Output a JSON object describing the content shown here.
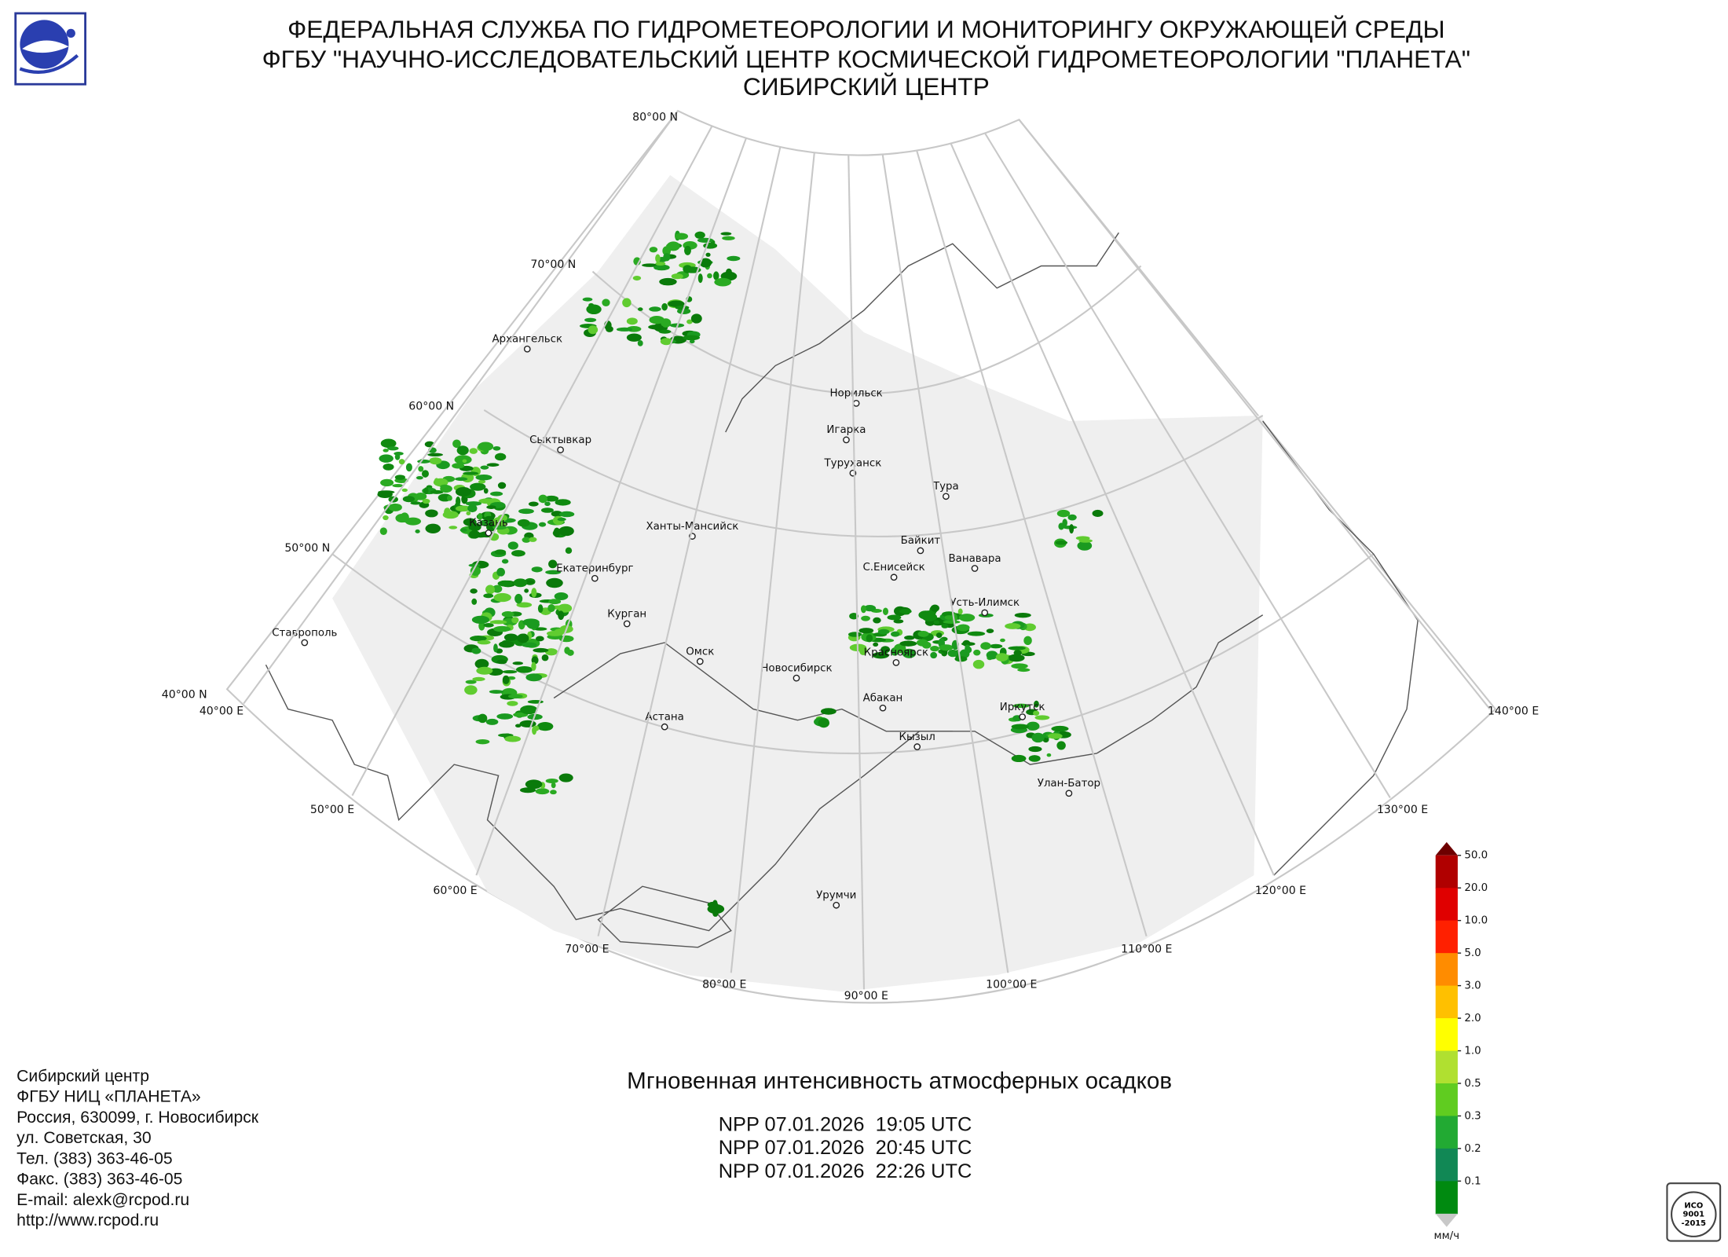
{
  "header": {
    "lines": [
      "ФЕДЕРАЛЬНАЯ СЛУЖБА ПО ГИДРОМЕТЕОРОЛОГИИ И МОНИТОРИНГУ ОКРУЖАЮЩЕЙ СРЕДЫ",
      "ФГБУ \"НАУЧНО-ИССЛЕДОВАТЕЛЬСКИЙ ЦЕНТР КОСМИЧЕСКОЙ ГИДРОМЕТЕОРОЛОГИИ \"ПЛАНЕТА\"",
      "СИБИРСКИЙ ЦЕНТР"
    ]
  },
  "map": {
    "graticule_labels": [
      "80°00 N",
      "70°00 N",
      "60°00 N",
      "50°00 N",
      "40°00 N",
      "40°00 E",
      "50°00 E",
      "60°00 E",
      "70°00 E",
      "80°00 E",
      "90°00 E",
      "100°00 E",
      "110°00 E",
      "120°00 E",
      "130°00 E",
      "140°00 E"
    ],
    "cities": [
      "Архангельск",
      "Сыктывкар",
      "Казань",
      "Екатеринбург",
      "Ханты-Мансийск",
      "Ставрополь",
      "Курган",
      "Омск",
      "Астана",
      "Новосибирск",
      "Норильск",
      "Игарка",
      "Туруханск",
      "Тура",
      "Байкит",
      "Ванавара",
      "С.Енисейск",
      "Усть-Илимск",
      "Красноярск",
      "Абакан",
      "Иркутск",
      "Кызыл",
      "Улан-Батор",
      "Урумчи"
    ]
  },
  "legend": {
    "labels": [
      "50.0",
      "20.0",
      "10.0",
      "5.0",
      "3.0",
      "2.0",
      "1.0",
      "0.5",
      "0.3",
      "0.2",
      "0.1"
    ],
    "colors": [
      "#b00000",
      "#e00000",
      "#ff2000",
      "#ff8c00",
      "#ffc000",
      "#ffff00",
      "#b0e030",
      "#60cc20",
      "#22aa33",
      "#118855",
      "#008a10"
    ],
    "top_color": "#6e0000",
    "bottom_color": "#c8c8c8",
    "unit": "мм/ч"
  },
  "product": {
    "title": "Мгновенная интенсивность атмосферных осадков",
    "passes": [
      "NPP 07.01.2026  19:05 UTC",
      "NPP 07.01.2026  20:45 UTC",
      "NPP 07.01.2026  22:26 UTC"
    ]
  },
  "contacts": [
    "Сибирский центр",
    "ФГБУ НИЦ «ПЛАНЕТА»",
    "Россия, 630099, г. Новосибирск",
    "ул. Советская, 30",
    "Тел. (383) 363-46-05",
    "Факс. (383) 363-46-05",
    "E-mail: alexk@rcpod.ru",
    "http://www.rcpod.ru"
  ],
  "iso": [
    "ИСО",
    "9001",
    "-2015"
  ]
}
